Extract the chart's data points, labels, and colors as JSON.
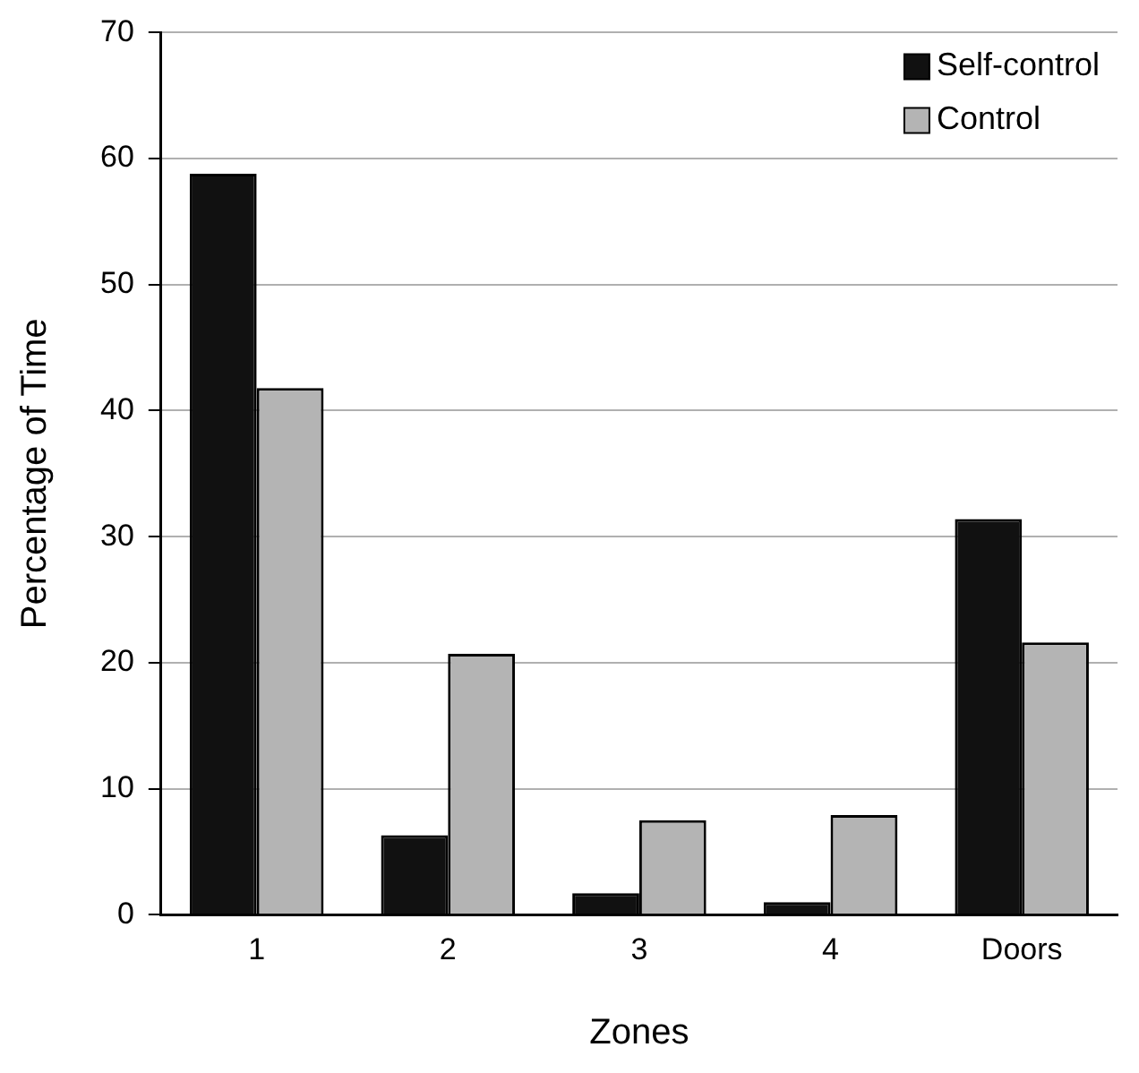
{
  "chart_data": {
    "type": "bar",
    "xlabel": "Zones",
    "ylabel": "Percentage of Time",
    "categories": [
      "1",
      "2",
      "3",
      "4",
      "Doors"
    ],
    "series": [
      {
        "name": "Self-control",
        "color": "#111111",
        "values": [
          58.8,
          6.3,
          1.7,
          1.0,
          31.4
        ]
      },
      {
        "name": "Control",
        "color": "#b4b4b4",
        "values": [
          41.8,
          20.7,
          7.5,
          7.9,
          21.6
        ]
      }
    ],
    "ylim": [
      0,
      70
    ],
    "yticks": [
      0,
      10,
      20,
      30,
      40,
      50,
      60,
      70
    ],
    "grid": "y",
    "legend": "top right"
  }
}
